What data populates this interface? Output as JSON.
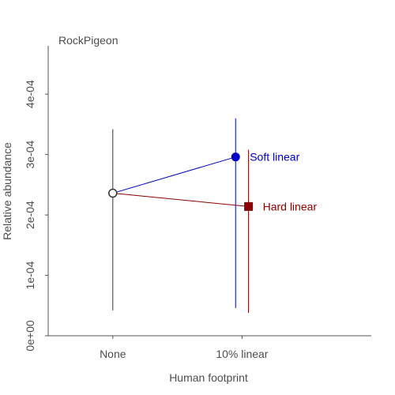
{
  "chart_data": {
    "type": "scatter",
    "title": "RockPigeon",
    "xlabel": "Human footprint",
    "ylabel": "Relative abundance",
    "categories": [
      "None",
      "10% linear"
    ],
    "y_ticks": [
      0,
      0.0001,
      0.0002,
      0.0003,
      0.0004
    ],
    "y_tick_labels": [
      "0e+00",
      "1e-04",
      "2e-04",
      "3e-04",
      "4e-04"
    ],
    "ylim": [
      0,
      0.00048
    ],
    "xlim": [
      0.5,
      3.0
    ],
    "baseline": {
      "category": "None",
      "x": 1,
      "y": 0.000236,
      "lower": 4.2e-05,
      "upper": 0.000342,
      "color": "#333333"
    },
    "series": [
      {
        "name": "Soft linear",
        "color": "#0000cc",
        "marker": "circle",
        "category": "10% linear",
        "x": 1.95,
        "y": 0.000296,
        "lower": 4.6e-05,
        "upper": 0.00036
      },
      {
        "name": "Hard linear",
        "color": "#8b0000",
        "marker": "square",
        "category": "10% linear",
        "x": 2.05,
        "y": 0.000214,
        "lower": 3.8e-05,
        "upper": 0.000308
      }
    ],
    "grid": false,
    "legend": "direct labels right of points"
  }
}
